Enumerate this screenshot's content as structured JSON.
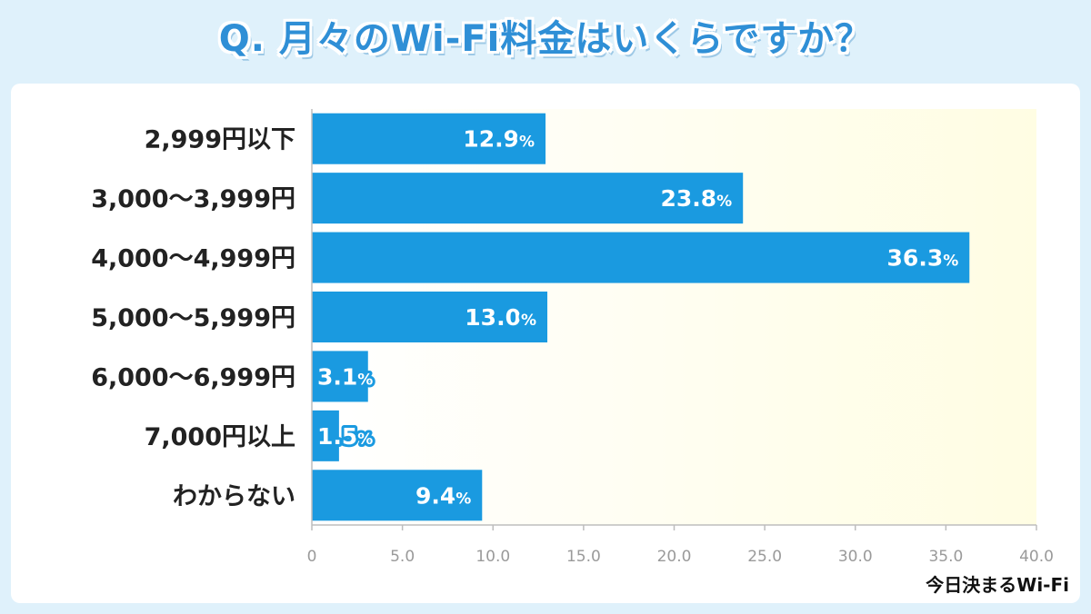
{
  "header": {
    "title": "Q. 月々のWi-Fi料金はいくらですか？"
  },
  "brand": "今日決まるWi-Fi",
  "colors": {
    "bar": "#1a9ae0",
    "background": "#dff1fb",
    "plot_gradient_end": "#fffde3"
  },
  "chart_data": {
    "type": "bar",
    "orientation": "horizontal",
    "title": "Q. 月々のWi-Fi料金はいくらですか？",
    "xlabel": "",
    "ylabel": "",
    "categories": [
      "2,999円以下",
      "3,000～3,999円",
      "4,000～4,999円",
      "5,000～5,999円",
      "6,000～6,999円",
      "7,000円以上",
      "わからない"
    ],
    "values": [
      12.9,
      23.8,
      36.3,
      13.0,
      3.1,
      1.5,
      9.4
    ],
    "value_labels": [
      "12.9",
      "23.8",
      "36.3",
      "13.0",
      "3.1",
      "1.5",
      "9.4"
    ],
    "value_unit": "%",
    "xlim": [
      0,
      40
    ],
    "xticks": [
      "0",
      "5.0",
      "10.0",
      "15.0",
      "20.0",
      "25.0",
      "30.0",
      "35.0",
      "40.0"
    ],
    "grid": false
  }
}
